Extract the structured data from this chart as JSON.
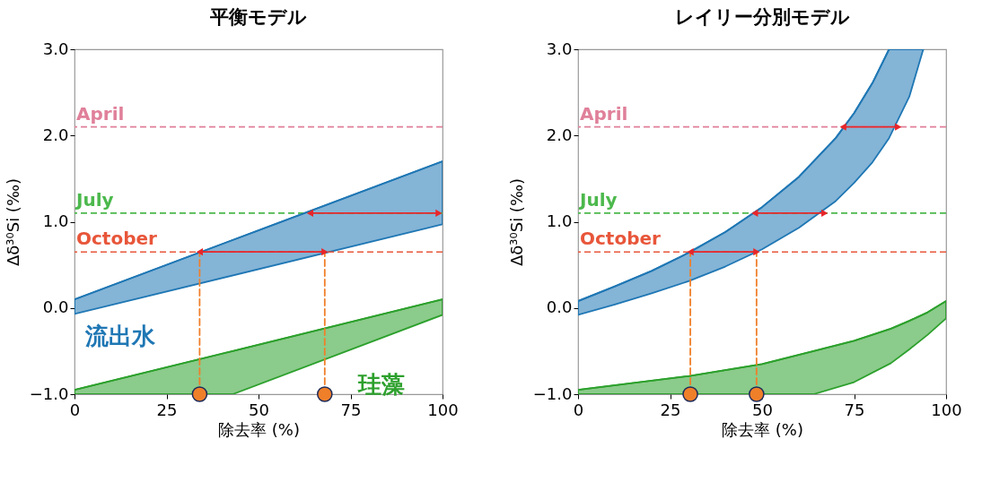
{
  "chart_data": [
    {
      "type": "line",
      "title": "平衡モデル",
      "xlabel": "除去率 (%)",
      "ylabel": "Δδ³⁰Si (‰)",
      "xlim": [
        0,
        100
      ],
      "ylim": [
        -1,
        3
      ],
      "xticks": [
        0,
        25,
        50,
        75,
        100
      ],
      "yticks": [
        {
          "value": -1,
          "label": "−1.0"
        },
        {
          "value": 0,
          "label": "0.0"
        },
        {
          "value": 1,
          "label": "1.0"
        },
        {
          "value": 2,
          "label": "2.0"
        },
        {
          "value": 3,
          "label": "3.0"
        }
      ],
      "grid": false,
      "legend": false,
      "ref_lines": [
        {
          "axis": "y",
          "value": 2.1,
          "label": "April",
          "color": "#e0809a",
          "line_style": "dashed"
        },
        {
          "axis": "y",
          "value": 1.1,
          "label": "July",
          "color": "#4cb84c",
          "line_style": "dashed"
        },
        {
          "axis": "y",
          "value": 0.65,
          "label": "October",
          "color": "#e8563a",
          "line_style": "dashed"
        }
      ],
      "series": [
        {
          "type": "line",
          "name": "流出水",
          "color": "#1f77b4",
          "x": [
            0,
            100
          ],
          "values": [
            0.1,
            1.7
          ],
          "lower": [
            -0.07,
            0.97
          ],
          "upper": [
            0.1,
            1.7
          ],
          "marker": "none"
        },
        {
          "type": "line",
          "name": "珪藻",
          "color": "#2ca02c",
          "x": [
            0,
            43,
            100
          ],
          "values": [
            -0.95,
            -0.5,
            0.1
          ],
          "lower": [
            -1,
            -1,
            -0.08
          ],
          "upper": [
            -0.95,
            -0.5,
            0.1
          ],
          "marker": "none"
        },
        {
          "type": "line",
          "color": "#f07f2a",
          "x": [
            34,
            34
          ],
          "values": [
            -1,
            0.65
          ],
          "line_style": "dashed",
          "marker": "none"
        },
        {
          "type": "line",
          "color": "#f07f2a",
          "x": [
            68,
            68
          ],
          "values": [
            -1,
            0.65
          ],
          "line_style": "dashed",
          "marker": "none"
        },
        {
          "type": "line",
          "color": "#e8262a",
          "x": [
            34,
            68
          ],
          "values": [
            0.65,
            0.65
          ],
          "line_style": "solid",
          "marker": "triangle"
        },
        {
          "type": "line",
          "color": "#e8262a",
          "x": [
            64,
            99
          ],
          "values": [
            1.1,
            1.1
          ],
          "line_style": "solid",
          "marker": "triangle"
        },
        {
          "type": "scatter",
          "color": "#f07f2a",
          "x": [
            34,
            68
          ],
          "values": [
            -1,
            -1
          ],
          "marker": "circle"
        }
      ]
    },
    {
      "type": "line",
      "title": "レイリー分別モデル",
      "xlabel": "除去率 (%)",
      "ylabel": "Δδ³⁰Si (‰)",
      "xlim": [
        0,
        100
      ],
      "ylim": [
        -1,
        3
      ],
      "xticks": [
        0,
        25,
        50,
        75,
        100
      ],
      "yticks": [
        {
          "value": -1,
          "label": "−1.0"
        },
        {
          "value": 0,
          "label": "0.0"
        },
        {
          "value": 1,
          "label": "1.0"
        },
        {
          "value": 2,
          "label": "2.0"
        },
        {
          "value": 3,
          "label": "3.0"
        }
      ],
      "grid": false,
      "legend": false,
      "ref_lines": [
        {
          "axis": "y",
          "value": 2.1,
          "label": "April",
          "color": "#e0809a",
          "line_style": "dashed"
        },
        {
          "axis": "y",
          "value": 1.1,
          "label": "July",
          "color": "#4cb84c",
          "line_style": "dashed"
        },
        {
          "axis": "y",
          "value": 0.65,
          "label": "October",
          "color": "#e8563a",
          "line_style": "dashed"
        }
      ],
      "series": [
        {
          "type": "line",
          "color": "#1f77b4",
          "x": [
            0,
            10,
            20,
            30,
            40,
            50,
            60,
            70,
            75,
            80,
            84.5,
            90,
            93.8
          ],
          "values": [
            0.08,
            0.25,
            0.43,
            0.64,
            0.88,
            1.17,
            1.52,
            1.97,
            2.26,
            2.61,
            3,
            3,
            3
          ],
          "lower": [
            -0.08,
            0.04,
            0.17,
            0.31,
            0.48,
            0.68,
            0.93,
            1.24,
            1.45,
            1.69,
            1.97,
            2.45,
            3
          ],
          "upper": [
            0.08,
            0.25,
            0.43,
            0.64,
            0.88,
            1.17,
            1.52,
            1.97,
            2.26,
            2.61,
            3,
            3,
            3
          ],
          "marker": "none"
        },
        {
          "type": "line",
          "color": "#2ca02c",
          "x": [
            0,
            30,
            50,
            64,
            75,
            85,
            90,
            95,
            100
          ],
          "values": [
            -0.95,
            -0.79,
            -0.65,
            -0.5,
            -0.38,
            -0.24,
            -0.15,
            -0.05,
            0.08
          ],
          "lower": [
            -1,
            -1,
            -1,
            -1,
            -0.86,
            -0.64,
            -0.48,
            -0.31,
            -0.12
          ],
          "upper": [
            -0.95,
            -0.79,
            -0.65,
            -0.5,
            -0.38,
            -0.24,
            -0.15,
            -0.05,
            0.08
          ],
          "marker": "none"
        },
        {
          "type": "line",
          "color": "#f07f2a",
          "x": [
            30.5,
            30.5
          ],
          "values": [
            -1,
            0.65
          ],
          "line_style": "dashed",
          "marker": "none"
        },
        {
          "type": "line",
          "color": "#f07f2a",
          "x": [
            48.5,
            48.5
          ],
          "values": [
            -1,
            0.65
          ],
          "line_style": "dashed",
          "marker": "none"
        },
        {
          "type": "line",
          "color": "#e8262a",
          "x": [
            30.5,
            48.5
          ],
          "values": [
            0.65,
            0.65
          ],
          "line_style": "solid",
          "marker": "triangle"
        },
        {
          "type": "line",
          "color": "#e8262a",
          "x": [
            48,
            67
          ],
          "values": [
            1.1,
            1.1
          ],
          "line_style": "solid",
          "marker": "triangle"
        },
        {
          "type": "line",
          "color": "#e8262a",
          "x": [
            72,
            87
          ],
          "values": [
            2.1,
            2.1
          ],
          "line_style": "solid",
          "marker": "triangle"
        },
        {
          "type": "scatter",
          "color": "#f07f2a",
          "x": [
            30.5,
            48.5
          ],
          "values": [
            -1,
            -1
          ],
          "marker": "circle"
        }
      ]
    }
  ]
}
